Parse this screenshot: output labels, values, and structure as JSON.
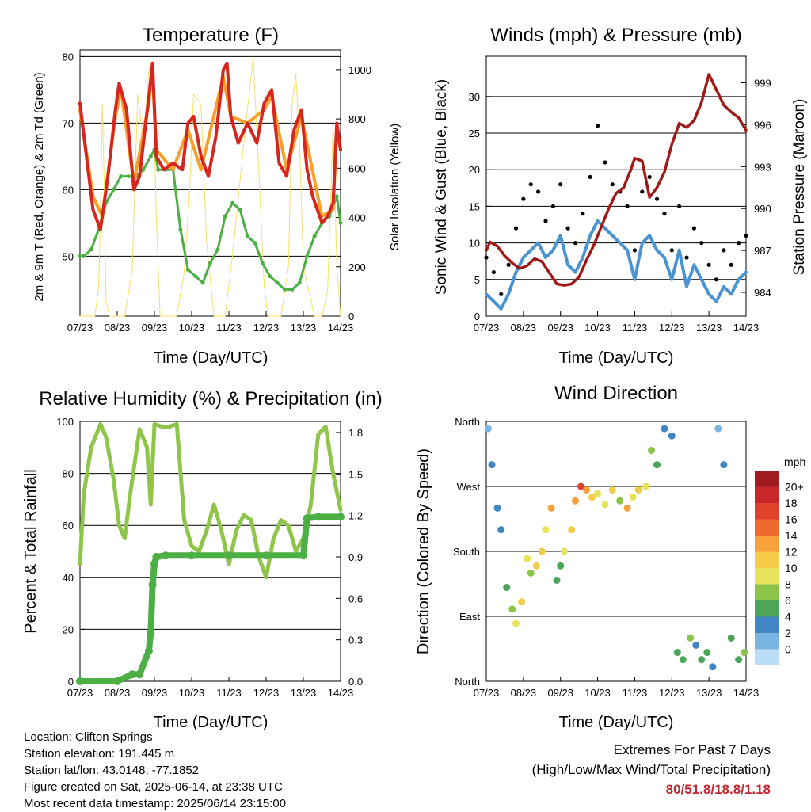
{
  "x_ticks": [
    "07/23",
    "08/23",
    "09/23",
    "10/23",
    "11/23",
    "12/23",
    "13/23",
    "14/23"
  ],
  "xlabel": "Time (Day/UTC)",
  "panels": {
    "temp": {
      "title": "Temperature (F)",
      "ylabel_left": "2m & 9m T (Red, Orange) & 2m Td (Green)",
      "ylabel_right": "Solar Insolation (Yellow)",
      "left_ticks": [
        "50",
        "60",
        "70",
        "80"
      ],
      "right_ticks": [
        "0",
        "200",
        "400",
        "600",
        "800",
        "1000"
      ]
    },
    "wind": {
      "title": "Winds (mph) & Pressure (mb)",
      "ylabel_left": "Sonic Wind & Gust (Blue, Black)",
      "ylabel_right": "Station Pressure (Maroon)",
      "left_ticks": [
        "0",
        "5",
        "10",
        "15",
        "20",
        "25",
        "30"
      ],
      "right_ticks": [
        "984",
        "987",
        "990",
        "993",
        "996",
        "999"
      ]
    },
    "rh": {
      "title": "Relative Humidity (%) & Precipitation (in)",
      "ylabel_left": "Percent & Total Rainfall",
      "left_ticks": [
        "0",
        "20",
        "40",
        "60",
        "80",
        "100"
      ],
      "right_ticks": [
        "0.0",
        "0.3",
        "0.6",
        "0.9",
        "1.2",
        "1.5",
        "1.8"
      ]
    },
    "dir": {
      "title": "Wind Direction",
      "ylabel_left": "Direction (Colored By Speed)",
      "left_ticks": [
        "North",
        "East",
        "South",
        "West",
        "North"
      ],
      "legend_title": "mph",
      "legend_labels": [
        "20+",
        "18",
        "16",
        "14",
        "12",
        "10",
        "8",
        "6",
        "4",
        "2",
        "0"
      ],
      "legend_colors": [
        "#a11a1f",
        "#c8262b",
        "#e0412c",
        "#ef6a2d",
        "#f7a03c",
        "#f3cc4a",
        "#e6e35a",
        "#8cc44a",
        "#4ca65a",
        "#3f86c2",
        "#7bb6e2",
        "#b9def5"
      ]
    }
  },
  "footer": {
    "location": "Location: Clifton Springs",
    "elevation": "Station elevation: 191.445 m",
    "latlon": "Station lat/lon: 43.0148; -77.1852",
    "created": "Figure created on Sat, 2025-06-14, at 23:38 UTC",
    "recent": "Most recent data timestamp: 2025/06/14 23:15:00"
  },
  "extremes": {
    "title": "Extremes For Past 7 Days",
    "subtitle": "(High/Low/Max Wind/Total Precipitation)",
    "values": "80/51.8/18.8/1.18"
  },
  "chart_data": [
    {
      "type": "line",
      "title": "Temperature (F)",
      "x": [
        "07/23",
        "08/23",
        "09/23",
        "10/23",
        "11/23",
        "12/23",
        "13/23",
        "14/23"
      ],
      "ylim": [
        41,
        81
      ],
      "y2lim": [
        0,
        1080
      ],
      "series": [
        {
          "name": "2m T",
          "color": "#d7261e",
          "x": [
            7.0,
            7.15,
            7.35,
            7.55,
            7.75,
            7.95,
            8.05,
            8.25,
            8.45,
            8.6,
            8.85,
            8.95,
            9.05,
            9.25,
            9.5,
            9.75,
            9.9,
            10.05,
            10.25,
            10.45,
            10.65,
            10.85,
            10.95,
            11.05,
            11.25,
            11.5,
            11.75,
            11.95,
            12.15,
            12.35,
            12.55,
            12.75,
            12.95,
            13.1,
            13.25,
            13.5,
            13.65,
            13.8,
            13.9,
            14.0
          ],
          "y": [
            73,
            66,
            57,
            54,
            62,
            72,
            76,
            72,
            60,
            62,
            74,
            79,
            65,
            63,
            64,
            63,
            70,
            71,
            65,
            62,
            68,
            78,
            79,
            71,
            67,
            70,
            67,
            73,
            75,
            64,
            62,
            69,
            72,
            63,
            59,
            55,
            56,
            58,
            70,
            66
          ]
        },
        {
          "name": "9m T",
          "color": "#f5a02a",
          "x": [
            7.0,
            7.35,
            7.6,
            7.95,
            8.1,
            8.45,
            8.85,
            8.95,
            9.05,
            9.5,
            9.9,
            10.25,
            10.85,
            11.05,
            11.5,
            11.95,
            12.15,
            12.55,
            12.95,
            13.5,
            13.8,
            13.9,
            14.0
          ],
          "y": [
            72,
            59,
            56,
            71,
            75,
            61,
            73,
            78,
            66,
            63,
            69,
            63,
            77,
            71,
            70,
            72,
            74,
            63,
            71,
            56,
            57,
            69,
            66
          ]
        },
        {
          "name": "2m Td",
          "color": "#4caf44",
          "x": [
            7.0,
            7.1,
            7.3,
            7.5,
            7.7,
            7.9,
            8.1,
            8.3,
            8.5,
            8.7,
            8.9,
            9.0,
            9.1,
            9.3,
            9.5,
            9.7,
            9.9,
            10.1,
            10.3,
            10.5,
            10.7,
            10.9,
            11.1,
            11.3,
            11.5,
            11.7,
            11.9,
            12.1,
            12.3,
            12.5,
            12.7,
            12.9,
            13.1,
            13.3,
            13.5,
            13.7,
            13.9,
            14.0
          ],
          "y": [
            50,
            50,
            51,
            54,
            58,
            60,
            62,
            62,
            62,
            63,
            65,
            66,
            63,
            63,
            63,
            54,
            48,
            47,
            46,
            49,
            51,
            56,
            58,
            57,
            53,
            52,
            49,
            47,
            46,
            45,
            45,
            46,
            50,
            53,
            55,
            56,
            59,
            55
          ]
        },
        {
          "name": "Solar Insolation",
          "color": "#f8df6c",
          "axis": "right",
          "x": [
            7.0,
            7.4,
            7.5,
            7.55,
            7.6,
            7.65,
            7.7,
            7.8,
            8.2,
            8.4,
            8.55,
            8.7,
            8.85,
            8.95,
            9.05,
            9.15,
            9.6,
            9.8,
            9.95,
            10.05,
            10.25,
            10.4,
            10.6,
            10.9,
            11.1,
            11.4,
            11.65,
            11.8,
            11.95,
            12.05,
            12.2,
            12.4,
            12.6,
            12.7,
            12.8,
            12.9,
            13.0,
            13.3,
            13.5,
            13.65,
            13.8,
            13.9,
            14.0
          ],
          "y": [
            0,
            0,
            120,
            400,
            860,
            520,
            60,
            0,
            0,
            180,
            900,
            700,
            1000,
            1020,
            400,
            0,
            0,
            180,
            520,
            900,
            860,
            300,
            0,
            0,
            250,
            700,
            1050,
            600,
            120,
            0,
            0,
            0,
            200,
            860,
            980,
            700,
            200,
            0,
            0,
            100,
            780,
            200,
            0
          ]
        }
      ]
    },
    {
      "type": "line",
      "title": "Winds (mph) & Pressure (mb)",
      "x": [
        "07/23",
        "08/23",
        "09/23",
        "10/23",
        "11/23",
        "12/23",
        "13/23",
        "14/23"
      ],
      "ylim": [
        0,
        35.5
      ],
      "y2lim": [
        982.3,
        1000.9
      ],
      "series": [
        {
          "name": "Sonic Wind",
          "color": "#4b94d0",
          "x": [
            7.0,
            7.2,
            7.4,
            7.6,
            7.8,
            8.0,
            8.2,
            8.4,
            8.6,
            8.8,
            9.0,
            9.2,
            9.4,
            9.6,
            9.8,
            10.0,
            10.2,
            10.4,
            10.6,
            10.8,
            11.0,
            11.2,
            11.4,
            11.6,
            11.8,
            12.0,
            12.2,
            12.4,
            12.6,
            12.8,
            13.0,
            13.2,
            13.4,
            13.6,
            13.8,
            14.0
          ],
          "y": [
            3,
            2,
            1,
            3,
            6,
            8,
            9,
            10,
            8,
            9,
            11,
            7,
            6,
            8,
            11,
            13,
            12,
            11,
            10,
            9,
            5,
            10,
            11,
            9,
            8,
            5,
            9,
            4,
            7,
            5,
            3,
            2,
            4,
            3,
            5,
            6
          ]
        },
        {
          "name": "Gust",
          "color": "#000000",
          "x": [
            7.0,
            7.2,
            7.4,
            7.6,
            7.8,
            8.0,
            8.2,
            8.4,
            8.6,
            8.8,
            9.0,
            9.2,
            9.4,
            9.6,
            9.8,
            10.0,
            10.2,
            10.4,
            10.6,
            10.8,
            11.0,
            11.2,
            11.4,
            11.6,
            11.8,
            12.0,
            12.2,
            12.4,
            12.6,
            12.8,
            13.0,
            13.2,
            13.4,
            13.6,
            13.8,
            14.0
          ],
          "y": [
            8,
            6,
            3,
            7,
            12,
            16,
            18,
            17,
            13,
            15,
            18,
            12,
            10,
            14,
            19,
            26,
            21,
            18,
            17,
            15,
            9,
            17,
            19,
            16,
            14,
            9,
            15,
            8,
            12,
            10,
            7,
            5,
            9,
            7,
            10,
            11
          ]
        },
        {
          "name": "Station Pressure",
          "color": "#a01a1a",
          "axis": "right",
          "x": [
            7.0,
            7.1,
            7.3,
            7.5,
            7.7,
            7.9,
            8.1,
            8.3,
            8.5,
            8.7,
            8.9,
            9.1,
            9.3,
            9.5,
            9.7,
            9.9,
            10.1,
            10.3,
            10.5,
            10.7,
            10.9,
            11.0,
            11.2,
            11.4,
            11.6,
            11.8,
            12.0,
            12.2,
            12.4,
            12.6,
            12.8,
            13.0,
            13.2,
            13.4,
            13.6,
            13.8,
            14.0
          ],
          "y": [
            987.0,
            987.6,
            987.3,
            986.6,
            986.1,
            985.7,
            985.9,
            986.4,
            986.2,
            985.4,
            984.6,
            984.5,
            984.6,
            985.1,
            986.3,
            987.4,
            988.7,
            990.0,
            991.1,
            991.5,
            992.8,
            993.6,
            993.4,
            990.8,
            991.5,
            992.6,
            994.6,
            996.1,
            995.8,
            996.3,
            997.6,
            999.6,
            998.5,
            997.4,
            996.9,
            996.5,
            995.6
          ]
        }
      ]
    },
    {
      "type": "line",
      "title": "Relative Humidity (%) & Precipitation (in)",
      "x": [
        "07/23",
        "08/23",
        "09/23",
        "10/23",
        "11/23",
        "12/23",
        "13/23",
        "14/23"
      ],
      "ylim": [
        0,
        100
      ],
      "y2lim": [
        0,
        1.88
      ],
      "series": [
        {
          "name": "Relative Humidity",
          "color": "#8fc54a",
          "x": [
            7.0,
            7.1,
            7.3,
            7.55,
            7.7,
            7.9,
            8.05,
            8.2,
            8.35,
            8.6,
            8.8,
            8.9,
            9.0,
            9.2,
            9.4,
            9.6,
            9.8,
            10.0,
            10.2,
            10.4,
            10.6,
            10.8,
            11.0,
            11.2,
            11.4,
            11.6,
            11.8,
            12.0,
            12.2,
            12.4,
            12.6,
            12.8,
            13.0,
            13.2,
            13.4,
            13.6,
            13.8,
            14.0
          ],
          "y": [
            45,
            72,
            90,
            99,
            94,
            78,
            60,
            55,
            72,
            97,
            90,
            68,
            99,
            98,
            98,
            99,
            62,
            52,
            50,
            58,
            68,
            58,
            45,
            58,
            64,
            62,
            48,
            40,
            55,
            62,
            60,
            50,
            55,
            68,
            95,
            98,
            80,
            66
          ]
        },
        {
          "name": "Total Rainfall",
          "color": "#4caf44",
          "axis": "right",
          "x": [
            7.0,
            8.0,
            8.4,
            8.6,
            8.85,
            8.9,
            8.95,
            9.0,
            9.05,
            9.3,
            10.0,
            11.0,
            12.0,
            13.0,
            13.1,
            13.4,
            14.0
          ],
          "y": [
            0,
            0,
            0.05,
            0.05,
            0.22,
            0.35,
            0.7,
            0.85,
            0.9,
            0.91,
            0.91,
            0.91,
            0.91,
            0.91,
            1.18,
            1.19,
            1.19
          ]
        }
      ]
    },
    {
      "type": "scatter",
      "title": "Wind Direction",
      "x": [
        "07/23",
        "08/23",
        "09/23",
        "10/23",
        "11/23",
        "12/23",
        "13/23",
        "14/23"
      ],
      "y_categories": [
        "North",
        "East",
        "South",
        "West",
        "North"
      ],
      "ylim": [
        0,
        360
      ],
      "series": [
        {
          "name": "Wind Direction",
          "x": [
            7.05,
            7.15,
            7.3,
            7.4,
            7.55,
            7.7,
            7.8,
            7.95,
            8.1,
            8.2,
            8.35,
            8.5,
            8.6,
            8.75,
            8.9,
            9.0,
            9.1,
            9.3,
            9.4,
            9.55,
            9.7,
            9.85,
            10.0,
            10.2,
            10.4,
            10.6,
            10.8,
            10.95,
            11.1,
            11.3,
            11.45,
            11.6,
            11.8,
            12.0,
            12.15,
            12.3,
            12.5,
            12.65,
            12.8,
            12.95,
            13.1,
            13.25,
            13.4,
            13.6,
            13.8,
            13.95
          ],
          "y": [
            350,
            300,
            240,
            210,
            130,
            100,
            80,
            110,
            170,
            150,
            160,
            180,
            210,
            240,
            140,
            160,
            180,
            210,
            250,
            270,
            265,
            255,
            260,
            245,
            265,
            250,
            240,
            255,
            265,
            270,
            320,
            300,
            350,
            340,
            40,
            30,
            60,
            50,
            30,
            40,
            20,
            350,
            300,
            60,
            30,
            40
          ],
          "speed": [
            2,
            3,
            4,
            3,
            6,
            8,
            10,
            12,
            9,
            8,
            11,
            12,
            10,
            13,
            5,
            6,
            9,
            11,
            13,
            17,
            14,
            12,
            10,
            9,
            12,
            8,
            13,
            10,
            11,
            9,
            8,
            5,
            3,
            4,
            6,
            5,
            7,
            4,
            5,
            6,
            3,
            2,
            3,
            5,
            6,
            7
          ]
        }
      ]
    }
  ]
}
